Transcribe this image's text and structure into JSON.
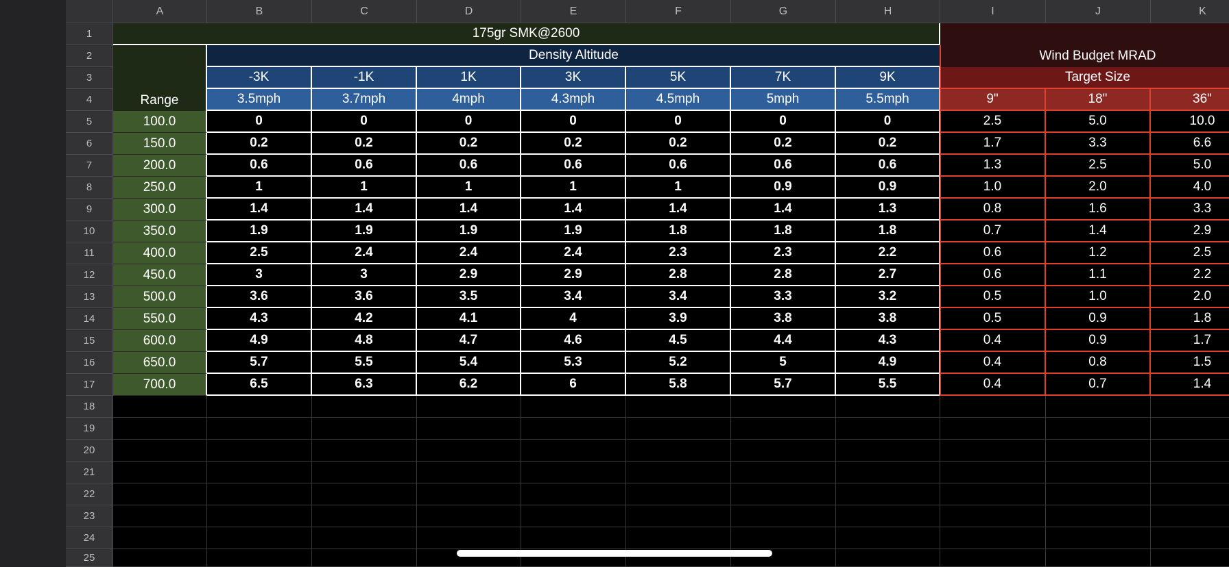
{
  "columns": [
    "A",
    "B",
    "C",
    "D",
    "E",
    "F",
    "G",
    "H",
    "I",
    "J",
    "K"
  ],
  "rows": [
    "1",
    "2",
    "3",
    "4",
    "5",
    "6",
    "7",
    "8",
    "9",
    "10",
    "11",
    "12",
    "13",
    "14",
    "15",
    "16",
    "17",
    "18",
    "19",
    "20",
    "21",
    "22",
    "23",
    "24",
    "25"
  ],
  "sheet": {
    "title": "175gr SMK@2600",
    "range_header": "Range",
    "density_altitude_title": "Density Altitude",
    "altitudes": [
      "-3K",
      "-1K",
      "1K",
      "3K",
      "5K",
      "7K",
      "9K"
    ],
    "wind_speeds": [
      "3.5mph",
      "3.7mph",
      "4mph",
      "4.3mph",
      "4.5mph",
      "5mph",
      "5.5mph"
    ],
    "wind_budget_title": "Wind Budget MRAD",
    "target_size_title": "Target Size",
    "target_sizes": [
      "9\"",
      "18\"",
      "36\""
    ],
    "data_rows": [
      {
        "range": "100.0",
        "values": [
          "0",
          "0",
          "0",
          "0",
          "0",
          "0",
          "0"
        ],
        "wind": [
          "2.5",
          "5.0",
          "10.0"
        ]
      },
      {
        "range": "150.0",
        "values": [
          "0.2",
          "0.2",
          "0.2",
          "0.2",
          "0.2",
          "0.2",
          "0.2"
        ],
        "wind": [
          "1.7",
          "3.3",
          "6.6"
        ]
      },
      {
        "range": "200.0",
        "values": [
          "0.6",
          "0.6",
          "0.6",
          "0.6",
          "0.6",
          "0.6",
          "0.6"
        ],
        "wind": [
          "1.3",
          "2.5",
          "5.0"
        ]
      },
      {
        "range": "250.0",
        "values": [
          "1",
          "1",
          "1",
          "1",
          "1",
          "0.9",
          "0.9"
        ],
        "wind": [
          "1.0",
          "2.0",
          "4.0"
        ]
      },
      {
        "range": "300.0",
        "values": [
          "1.4",
          "1.4",
          "1.4",
          "1.4",
          "1.4",
          "1.4",
          "1.3"
        ],
        "wind": [
          "0.8",
          "1.6",
          "3.3"
        ]
      },
      {
        "range": "350.0",
        "values": [
          "1.9",
          "1.9",
          "1.9",
          "1.9",
          "1.8",
          "1.8",
          "1.8"
        ],
        "wind": [
          "0.7",
          "1.4",
          "2.9"
        ]
      },
      {
        "range": "400.0",
        "values": [
          "2.5",
          "2.4",
          "2.4",
          "2.4",
          "2.3",
          "2.3",
          "2.2"
        ],
        "wind": [
          "0.6",
          "1.2",
          "2.5"
        ]
      },
      {
        "range": "450.0",
        "values": [
          "3",
          "3",
          "2.9",
          "2.9",
          "2.8",
          "2.8",
          "2.7"
        ],
        "wind": [
          "0.6",
          "1.1",
          "2.2"
        ]
      },
      {
        "range": "500.0",
        "values": [
          "3.6",
          "3.6",
          "3.5",
          "3.4",
          "3.4",
          "3.3",
          "3.2"
        ],
        "wind": [
          "0.5",
          "1.0",
          "2.0"
        ]
      },
      {
        "range": "550.0",
        "values": [
          "4.3",
          "4.2",
          "4.1",
          "4",
          "3.9",
          "3.8",
          "3.8"
        ],
        "wind": [
          "0.5",
          "0.9",
          "1.8"
        ]
      },
      {
        "range": "600.0",
        "values": [
          "4.9",
          "4.8",
          "4.7",
          "4.6",
          "4.5",
          "4.4",
          "4.3"
        ],
        "wind": [
          "0.4",
          "0.9",
          "1.7"
        ]
      },
      {
        "range": "650.0",
        "values": [
          "5.7",
          "5.5",
          "5.4",
          "5.3",
          "5.2",
          "5",
          "4.9"
        ],
        "wind": [
          "0.4",
          "0.8",
          "1.5"
        ]
      },
      {
        "range": "700.0",
        "values": [
          "6.5",
          "6.3",
          "6.2",
          "6",
          "5.8",
          "5.7",
          "5.5"
        ],
        "wind": [
          "0.4",
          "0.7",
          "1.4"
        ]
      }
    ]
  }
}
